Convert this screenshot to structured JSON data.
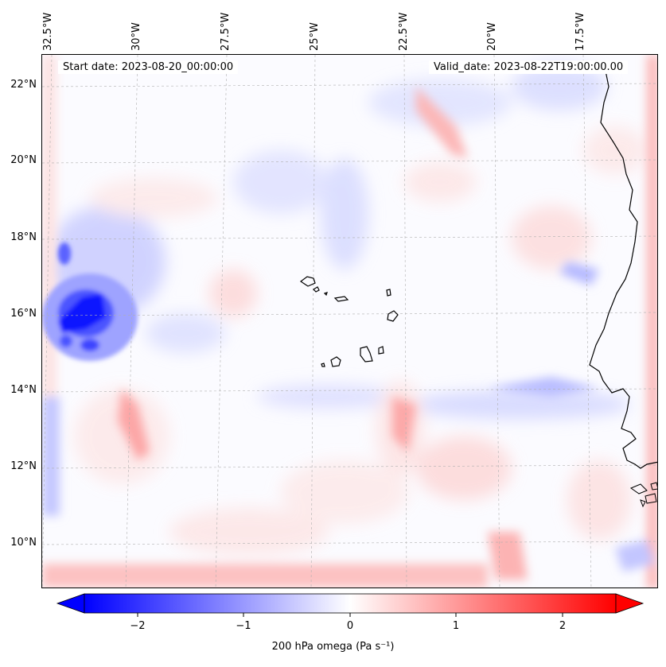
{
  "map": {
    "start_date": "Start date: 2023-08-20_00:00:00",
    "valid_date": "Valid_date: 2023-08-22T19:00:00.00",
    "longitude_labels": [
      "32.5°W",
      "30°W",
      "27.5°W",
      "25°W",
      "22.5°W",
      "20°W",
      "17.5°W"
    ],
    "latitude_labels": [
      "22°N",
      "20°N",
      "18°N",
      "16°N",
      "14°N",
      "12°N",
      "10°N"
    ],
    "colorbar": {
      "label": "200 hPa omega (Pa s⁻¹)",
      "ticks": [
        "−2",
        "−1",
        "0",
        "1",
        "2"
      ],
      "min": -2.7,
      "max": 2.7,
      "colors": {
        "low": "#0000ff",
        "mid": "#ffffff",
        "high": "#ff0000"
      }
    },
    "colors": {
      "coastline": "#000000",
      "gridline": "#b0b0b0",
      "background": "#fbfbff"
    }
  }
}
